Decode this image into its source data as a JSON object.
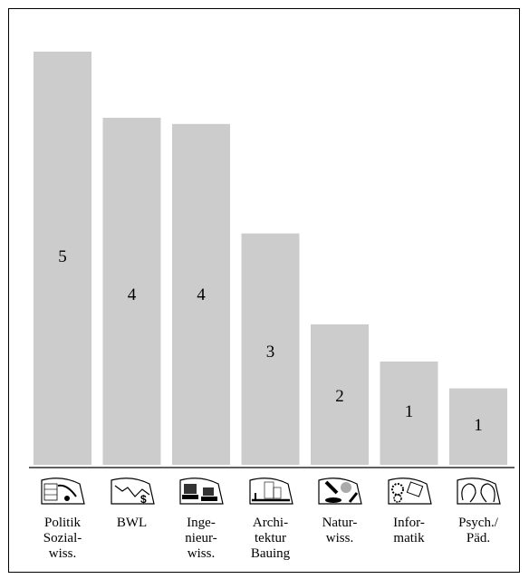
{
  "chart_data": {
    "type": "bar",
    "categories": [
      {
        "lines": [
          "Politik",
          "Sozial-",
          "wiss."
        ],
        "icon": "politics-social-science-icon"
      },
      {
        "lines": [
          "BWL"
        ],
        "icon": "business-chart-dollar-icon"
      },
      {
        "lines": [
          "Inge-",
          "nieur-",
          "wiss."
        ],
        "icon": "engineering-computers-icon"
      },
      {
        "lines": [
          "Archi-",
          "tektur",
          "Bauing"
        ],
        "icon": "architecture-building-icon"
      },
      {
        "lines": [
          "Natur-",
          "wiss."
        ],
        "icon": "microscope-science-icon"
      },
      {
        "lines": [
          "Infor-",
          "matik"
        ],
        "icon": "gears-informatics-icon"
      },
      {
        "lines": [
          "Psych./",
          "Päd."
        ],
        "icon": "faces-psychology-icon"
      }
    ],
    "values": [
      5,
      4,
      4,
      3,
      2,
      1,
      1
    ],
    "bar_heights": [
      100,
      84,
      82.5,
      56,
      34,
      25,
      18.5
    ],
    "ylim": [
      0,
      100
    ],
    "bar_color": "#cccccc",
    "grid": false
  }
}
